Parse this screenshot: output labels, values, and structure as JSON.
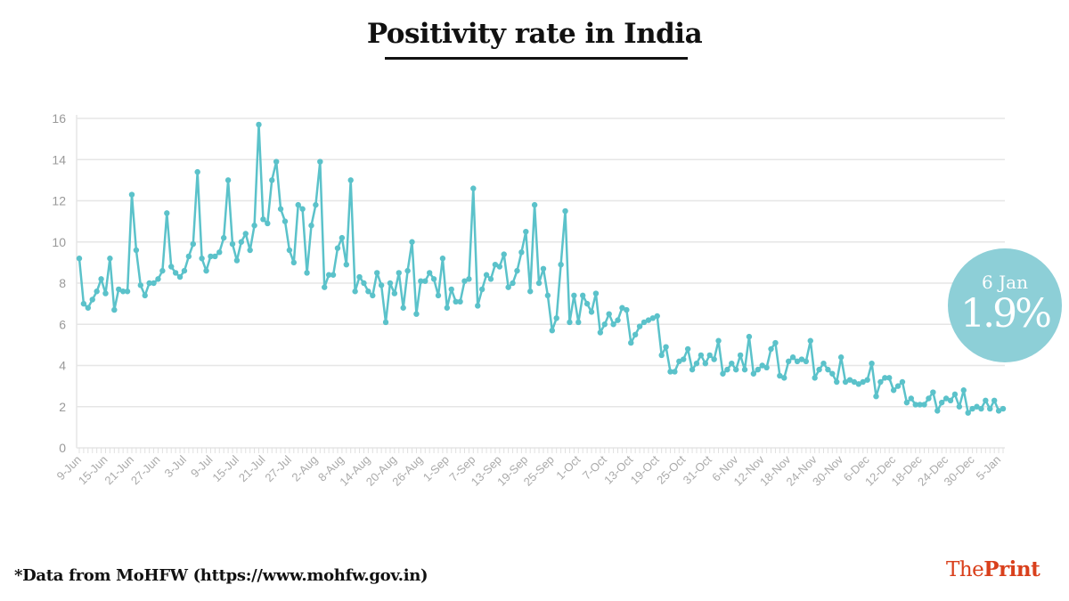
{
  "chart_data": {
    "type": "line",
    "title": "Positivity rate in India",
    "xlabel": "",
    "ylabel": "",
    "ylim": [
      0,
      16
    ],
    "yticks": [
      0,
      2,
      4,
      6,
      8,
      10,
      12,
      14,
      16
    ],
    "grid": true,
    "legend": "none",
    "line_color": "#5bc2ca",
    "xtick_labels": [
      "9-Jun",
      "15-Jun",
      "21-Jun",
      "27-Jun",
      "3-Jul",
      "9-Jul",
      "15-Jul",
      "21-Jul",
      "27-Jul",
      "2-Aug",
      "8-Aug",
      "14-Aug",
      "20-Aug",
      "26-Aug",
      "1-Sep",
      "7-Sep",
      "13-Sep",
      "19-Sep",
      "25-Sep",
      "1-Oct",
      "7-Oct",
      "13-Oct",
      "19-Oct",
      "25-Oct",
      "31-Oct",
      "6-Nov",
      "12-Nov",
      "18-Nov",
      "24-Nov",
      "30-Nov",
      "6-Dec",
      "12-Dec",
      "18-Dec",
      "24-Dec",
      "30-Dec",
      "5-Jan"
    ],
    "x": [
      "9-Jun",
      "10-Jun",
      "11-Jun",
      "12-Jun",
      "13-Jun",
      "14-Jun",
      "15-Jun",
      "16-Jun",
      "17-Jun",
      "18-Jun",
      "19-Jun",
      "20-Jun",
      "21-Jun",
      "22-Jun",
      "23-Jun",
      "24-Jun",
      "25-Jun",
      "26-Jun",
      "27-Jun",
      "28-Jun",
      "29-Jun",
      "30-Jun",
      "1-Jul",
      "2-Jul",
      "3-Jul",
      "4-Jul",
      "5-Jul",
      "6-Jul",
      "7-Jul",
      "8-Jul",
      "9-Jul",
      "10-Jul",
      "11-Jul",
      "12-Jul",
      "13-Jul",
      "14-Jul",
      "15-Jul",
      "16-Jul",
      "17-Jul",
      "18-Jul",
      "19-Jul",
      "20-Jul",
      "21-Jul",
      "22-Jul",
      "23-Jul",
      "24-Jul",
      "25-Jul",
      "26-Jul",
      "27-Jul",
      "28-Jul",
      "29-Jul",
      "30-Jul",
      "31-Jul",
      "1-Aug",
      "2-Aug",
      "3-Aug",
      "4-Aug",
      "5-Aug",
      "6-Aug",
      "7-Aug",
      "8-Aug",
      "9-Aug",
      "10-Aug",
      "11-Aug",
      "12-Aug",
      "13-Aug",
      "14-Aug",
      "15-Aug",
      "16-Aug",
      "17-Aug",
      "18-Aug",
      "19-Aug",
      "20-Aug",
      "21-Aug",
      "22-Aug",
      "23-Aug",
      "24-Aug",
      "25-Aug",
      "26-Aug",
      "27-Aug",
      "28-Aug",
      "29-Aug",
      "30-Aug",
      "31-Aug",
      "1-Sep",
      "2-Sep",
      "3-Sep",
      "4-Sep",
      "5-Sep",
      "6-Sep",
      "7-Sep",
      "8-Sep",
      "9-Sep",
      "10-Sep",
      "11-Sep",
      "12-Sep",
      "13-Sep",
      "14-Sep",
      "15-Sep",
      "16-Sep",
      "17-Sep",
      "18-Sep",
      "19-Sep",
      "20-Sep",
      "21-Sep",
      "22-Sep",
      "23-Sep",
      "24-Sep",
      "25-Sep",
      "26-Sep",
      "27-Sep",
      "28-Sep",
      "29-Sep",
      "30-Sep",
      "1-Oct",
      "2-Oct",
      "3-Oct",
      "4-Oct",
      "5-Oct",
      "6-Oct",
      "7-Oct",
      "8-Oct",
      "9-Oct",
      "10-Oct",
      "11-Oct",
      "12-Oct",
      "13-Oct",
      "14-Oct",
      "15-Oct",
      "16-Oct",
      "17-Oct",
      "18-Oct",
      "19-Oct",
      "20-Oct",
      "21-Oct",
      "22-Oct",
      "23-Oct",
      "24-Oct",
      "25-Oct",
      "26-Oct",
      "27-Oct",
      "28-Oct",
      "29-Oct",
      "30-Oct",
      "31-Oct",
      "1-Nov",
      "2-Nov",
      "3-Nov",
      "4-Nov",
      "5-Nov",
      "6-Nov",
      "7-Nov",
      "8-Nov",
      "9-Nov",
      "10-Nov",
      "11-Nov",
      "12-Nov",
      "13-Nov",
      "14-Nov",
      "15-Nov",
      "16-Nov",
      "17-Nov",
      "18-Nov",
      "19-Nov",
      "20-Nov",
      "21-Nov",
      "22-Nov",
      "23-Nov",
      "24-Nov",
      "25-Nov",
      "26-Nov",
      "27-Nov",
      "28-Nov",
      "29-Nov",
      "30-Nov",
      "1-Dec",
      "2-Dec",
      "3-Dec",
      "4-Dec",
      "5-Dec",
      "6-Dec",
      "7-Dec",
      "8-Dec",
      "9-Dec",
      "10-Dec",
      "11-Dec",
      "12-Dec",
      "13-Dec",
      "14-Dec",
      "15-Dec",
      "16-Dec",
      "17-Dec",
      "18-Dec",
      "19-Dec",
      "20-Dec",
      "21-Dec",
      "22-Dec",
      "23-Dec",
      "24-Dec",
      "25-Dec",
      "26-Dec",
      "27-Dec",
      "28-Dec",
      "29-Dec",
      "30-Dec",
      "31-Dec",
      "1-Jan",
      "2-Jan",
      "3-Jan",
      "4-Jan",
      "5-Jan",
      "6-Jan"
    ],
    "values": [
      9.2,
      7.0,
      6.8,
      7.2,
      7.6,
      8.2,
      7.5,
      9.2,
      6.7,
      7.7,
      7.6,
      7.6,
      12.3,
      9.6,
      7.9,
      7.4,
      8.0,
      8.0,
      8.2,
      8.6,
      11.4,
      8.8,
      8.5,
      8.3,
      8.6,
      9.3,
      9.9,
      13.4,
      9.2,
      8.6,
      9.3,
      9.3,
      9.5,
      10.2,
      13.0,
      9.9,
      9.1,
      10.0,
      10.4,
      9.6,
      10.8,
      15.7,
      11.1,
      10.9,
      13.0,
      13.9,
      11.6,
      11.0,
      9.6,
      9.0,
      11.8,
      11.6,
      8.5,
      10.8,
      11.8,
      13.9,
      7.8,
      8.4,
      8.4,
      9.7,
      10.2,
      8.9,
      13.0,
      7.6,
      8.3,
      8.0,
      7.6,
      7.4,
      8.5,
      7.9,
      6.1,
      8.0,
      7.5,
      8.5,
      6.8,
      8.6,
      10.0,
      6.5,
      8.1,
      8.1,
      8.5,
      8.2,
      7.4,
      9.2,
      6.8,
      7.7,
      7.1,
      7.1,
      8.1,
      8.2,
      12.6,
      6.9,
      7.7,
      8.4,
      8.2,
      8.9,
      8.8,
      9.4,
      7.8,
      8.0,
      8.6,
      9.5,
      10.5,
      7.6,
      11.8,
      8.0,
      8.7,
      7.4,
      5.7,
      6.3,
      8.9,
      11.5,
      6.1,
      7.4,
      6.1,
      7.4,
      7.0,
      6.6,
      7.5,
      5.6,
      6.0,
      6.5,
      6.0,
      6.2,
      6.8,
      6.7,
      5.1,
      5.5,
      5.9,
      6.1,
      6.2,
      6.3,
      6.4,
      4.5,
      4.9,
      3.7,
      3.7,
      4.2,
      4.3,
      4.8,
      3.8,
      4.1,
      4.5,
      4.1,
      4.5,
      4.3,
      5.2,
      3.6,
      3.8,
      4.1,
      3.8,
      4.5,
      3.8,
      5.4,
      3.6,
      3.8,
      4.0,
      3.9,
      4.8,
      5.1,
      3.5,
      3.4,
      4.2,
      4.4,
      4.2,
      4.3,
      4.2,
      5.2,
      3.4,
      3.8,
      4.1,
      3.8,
      3.6,
      3.2,
      4.4,
      3.2,
      3.3,
      3.2,
      3.1,
      3.2,
      3.3,
      4.1,
      2.5,
      3.2,
      3.4,
      3.4,
      2.8,
      3.0,
      3.2,
      2.2,
      2.4,
      2.1,
      2.1,
      2.1,
      2.4,
      2.7,
      1.8,
      2.2,
      2.4,
      2.3,
      2.6,
      2.0,
      2.8,
      1.7,
      1.9,
      2.0,
      1.9,
      2.3,
      1.9,
      2.3,
      1.8,
      1.9
    ],
    "annotation": {
      "date": "6 Jan",
      "value": "1.9%",
      "color": "#8dcfd7"
    }
  },
  "footnote": "*Data from MoHFW (https://www.mohfw.gov.in)",
  "logo": {
    "part1": "The",
    "part2": "Print",
    "color": "#d9401c"
  }
}
